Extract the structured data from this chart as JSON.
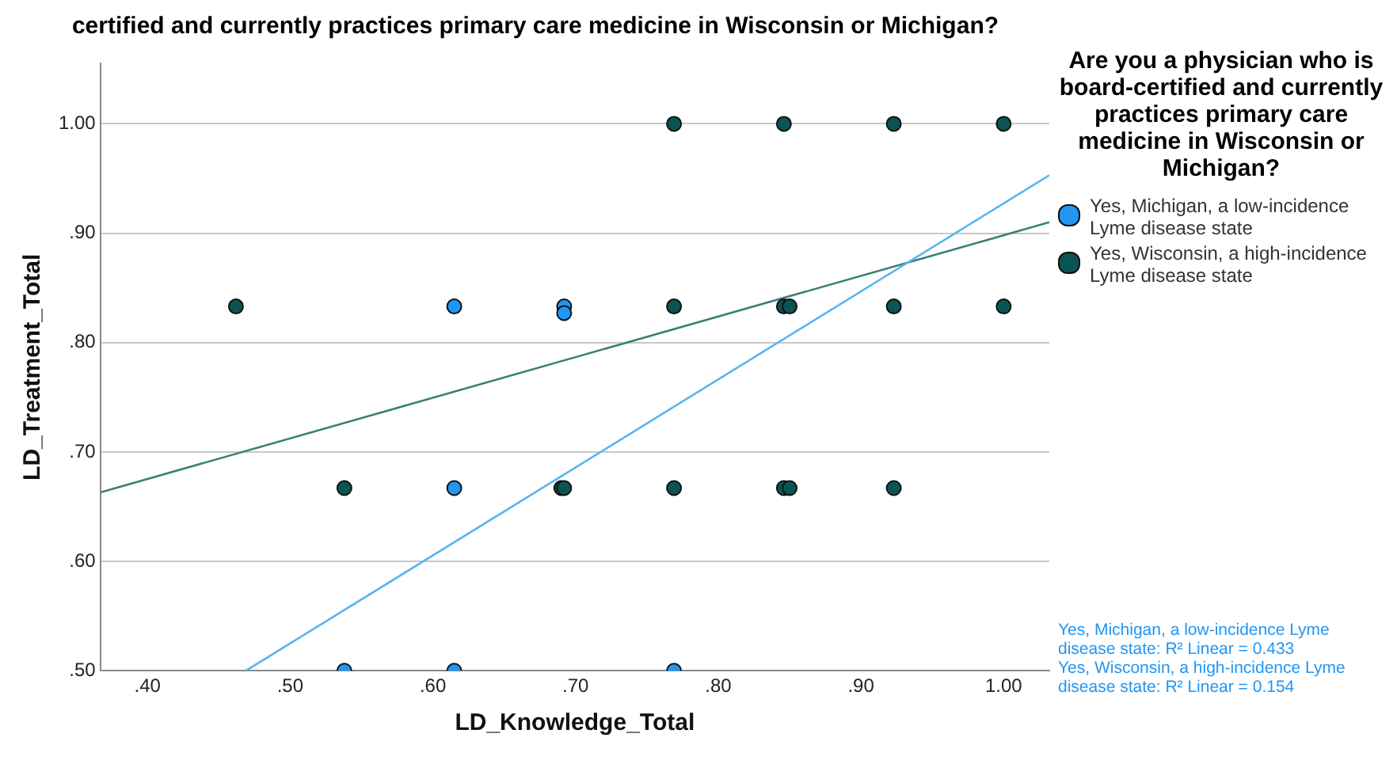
{
  "chart_data": {
    "type": "scatter",
    "title": "certified and currently practices primary care medicine in Wisconsin or Michigan?",
    "xlabel": "LD_Knowledge_Total",
    "ylabel": "LD_Treatment_Total",
    "legend_title": "Are you a physician who is board-certified and currently practices primary care medicine in Wisconsin or Michigan?",
    "legend": "right",
    "grid": "y",
    "marker": "circle",
    "xlim": [
      0.367,
      1.032
    ],
    "ylim": [
      0.5,
      1.055
    ],
    "xticks": [
      {
        "value": 0.4,
        "label": ".40"
      },
      {
        "value": 0.5,
        "label": ".50"
      },
      {
        "value": 0.6,
        "label": ".60"
      },
      {
        "value": 0.7,
        "label": ".70"
      },
      {
        "value": 0.8,
        "label": ".80"
      },
      {
        "value": 0.9,
        "label": ".90"
      },
      {
        "value": 1,
        "label": "1.00"
      }
    ],
    "yticks": [
      {
        "value": 0.5,
        "label": ".50"
      },
      {
        "value": 0.6,
        "label": ".60"
      },
      {
        "value": 0.7,
        "label": ".70"
      },
      {
        "value": 0.8,
        "label": ".80"
      },
      {
        "value": 0.9,
        "label": ".90"
      },
      {
        "value": 1,
        "label": "1.00"
      }
    ],
    "series": [
      {
        "name": "Yes, Michigan, a low-incidence Lyme disease state",
        "color": "#2196f3",
        "x": [
          0.615,
          0.692,
          0.692,
          0.615,
          0.538,
          0.615,
          0.769
        ],
        "values": [
          0.833,
          0.833,
          0.827,
          0.667,
          0.5,
          0.5,
          0.5
        ]
      },
      {
        "name": "Yes, Wisconsin, a high-incidence Lyme disease state",
        "color": "#0b5454",
        "x": [
          0.769,
          0.846,
          0.923,
          1.0,
          0.462,
          0.769,
          0.846,
          0.85,
          0.923,
          1.0,
          0.538,
          0.69,
          0.692,
          0.769,
          0.846,
          0.85,
          0.923
        ],
        "values": [
          1,
          1,
          1,
          1,
          0.833,
          0.833,
          0.833,
          0.833,
          0.833,
          0.833,
          0.667,
          0.667,
          0.667,
          0.667,
          0.667,
          0.667,
          0.667
        ]
      },
      {
        "type": "line",
        "marker": "none",
        "color": "#5ab4f0",
        "x": [
          0.469,
          1.032
        ],
        "values": [
          0.5,
          0.953
        ]
      },
      {
        "type": "line",
        "marker": "none",
        "color": "#3a7f78",
        "x": [
          0.367,
          1.032
        ],
        "values": [
          0.663,
          0.91
        ]
      }
    ],
    "annotations": [
      "Yes, Michigan, a low-incidence Lyme disease state: R² Linear = 0.433",
      "Yes, Wisconsin, a high-incidence Lyme disease state: R² Linear = 0.154"
    ]
  }
}
